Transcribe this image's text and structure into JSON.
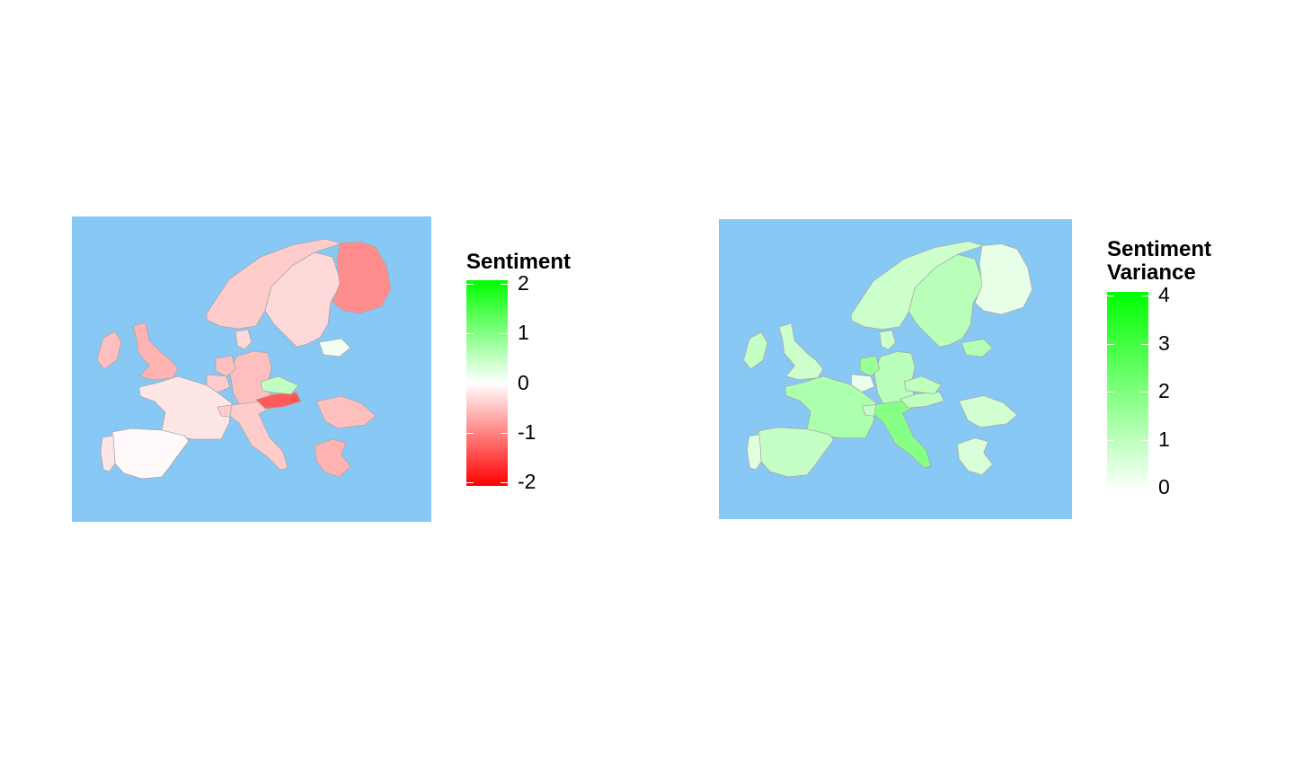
{
  "maps": [
    {
      "legend_title": "Sentiment",
      "scale": {
        "min": -2,
        "max": 2,
        "low_color": "#ff0000",
        "mid_color": "#ffffff",
        "high_color": "#00ff00"
      },
      "ticks": [
        "2",
        "1",
        "0",
        "-1",
        "-2"
      ],
      "ocean_color": "#87c8f5",
      "regions": [
        {
          "name": "Ireland",
          "value": -0.5
        },
        {
          "name": "United Kingdom",
          "value": -0.6
        },
        {
          "name": "Norway",
          "value": -0.4
        },
        {
          "name": "Sweden",
          "value": -0.3
        },
        {
          "name": "Finland",
          "value": -0.9
        },
        {
          "name": "Denmark",
          "value": -0.3
        },
        {
          "name": "Germany",
          "value": -0.5
        },
        {
          "name": "Netherlands",
          "value": -0.5
        },
        {
          "name": "Belgium",
          "value": -0.4
        },
        {
          "name": "France",
          "value": -0.2
        },
        {
          "name": "Spain",
          "value": -0.05
        },
        {
          "name": "Portugal",
          "value": -0.2
        },
        {
          "name": "Switzerland",
          "value": -0.4
        },
        {
          "name": "Italy",
          "value": -0.4
        },
        {
          "name": "Austria",
          "value": -1.3
        },
        {
          "name": "Czechia",
          "value": 0.5
        },
        {
          "name": "Lithuania",
          "value": 0.1
        },
        {
          "name": "Romania",
          "value": -0.5
        },
        {
          "name": "Greece",
          "value": -0.6
        }
      ]
    },
    {
      "legend_title": "Sentiment\nVariance",
      "scale": {
        "min": 0,
        "max": 4,
        "low_color": "#ffffff",
        "high_color": "#00ff00"
      },
      "ticks": [
        "4",
        "3",
        "2",
        "1",
        "0"
      ],
      "ocean_color": "#87c8f5",
      "regions": [
        {
          "name": "Ireland",
          "value": 0.9
        },
        {
          "name": "United Kingdom",
          "value": 0.8
        },
        {
          "name": "Norway",
          "value": 0.8
        },
        {
          "name": "Sweden",
          "value": 1.1
        },
        {
          "name": "Finland",
          "value": 0.4
        },
        {
          "name": "Denmark",
          "value": 0.8
        },
        {
          "name": "Germany",
          "value": 1.1
        },
        {
          "name": "Netherlands",
          "value": 1.6
        },
        {
          "name": "Belgium",
          "value": 0.3
        },
        {
          "name": "France",
          "value": 1.3
        },
        {
          "name": "Spain",
          "value": 0.9
        },
        {
          "name": "Portugal",
          "value": 0.5
        },
        {
          "name": "Switzerland",
          "value": 0.9
        },
        {
          "name": "Italy",
          "value": 1.9
        },
        {
          "name": "Austria",
          "value": 1.0
        },
        {
          "name": "Czechia",
          "value": 1.0
        },
        {
          "name": "Lithuania",
          "value": 1.2
        },
        {
          "name": "Romania",
          "value": 0.7
        },
        {
          "name": "Greece",
          "value": 0.6
        }
      ]
    }
  ]
}
